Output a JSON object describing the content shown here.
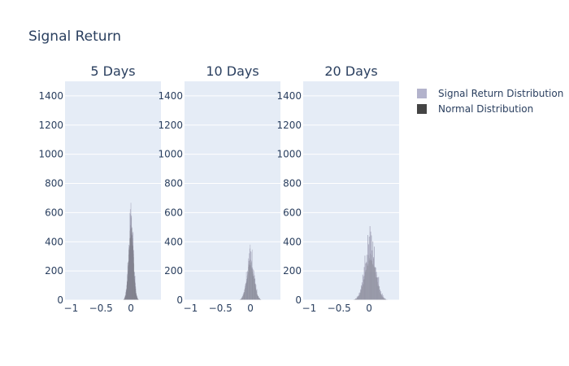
{
  "chart_data": {
    "type": "histogram",
    "title": "Signal Return",
    "yaxis": {
      "range": [
        0,
        1500
      ],
      "ticks": [
        0,
        200,
        400,
        600,
        800,
        1000,
        1200,
        1400
      ]
    },
    "xaxis": {
      "range": [
        -1.1,
        0.5
      ],
      "ticks": [
        -1,
        -0.5,
        0
      ],
      "tick_labels": [
        "−1",
        "−0.5",
        "0"
      ]
    },
    "legend": {
      "placement": "top-right",
      "items": [
        {
          "name": "Signal Return Distribution",
          "color": "#b3b3cc"
        },
        {
          "name": "Normal Distribution",
          "color": "#444444"
        }
      ]
    },
    "panels": [
      {
        "title": "5 Days",
        "center": 0.0,
        "spread": 0.04,
        "peak": 600,
        "normal_peak": 520
      },
      {
        "title": "10 Days",
        "center": 0.0,
        "spread": 0.06,
        "peak": 340,
        "normal_peak": 260
      },
      {
        "title": "20 Days",
        "center": 0.02,
        "spread": 0.09,
        "peak": 450,
        "normal_peak": 310
      }
    ]
  }
}
